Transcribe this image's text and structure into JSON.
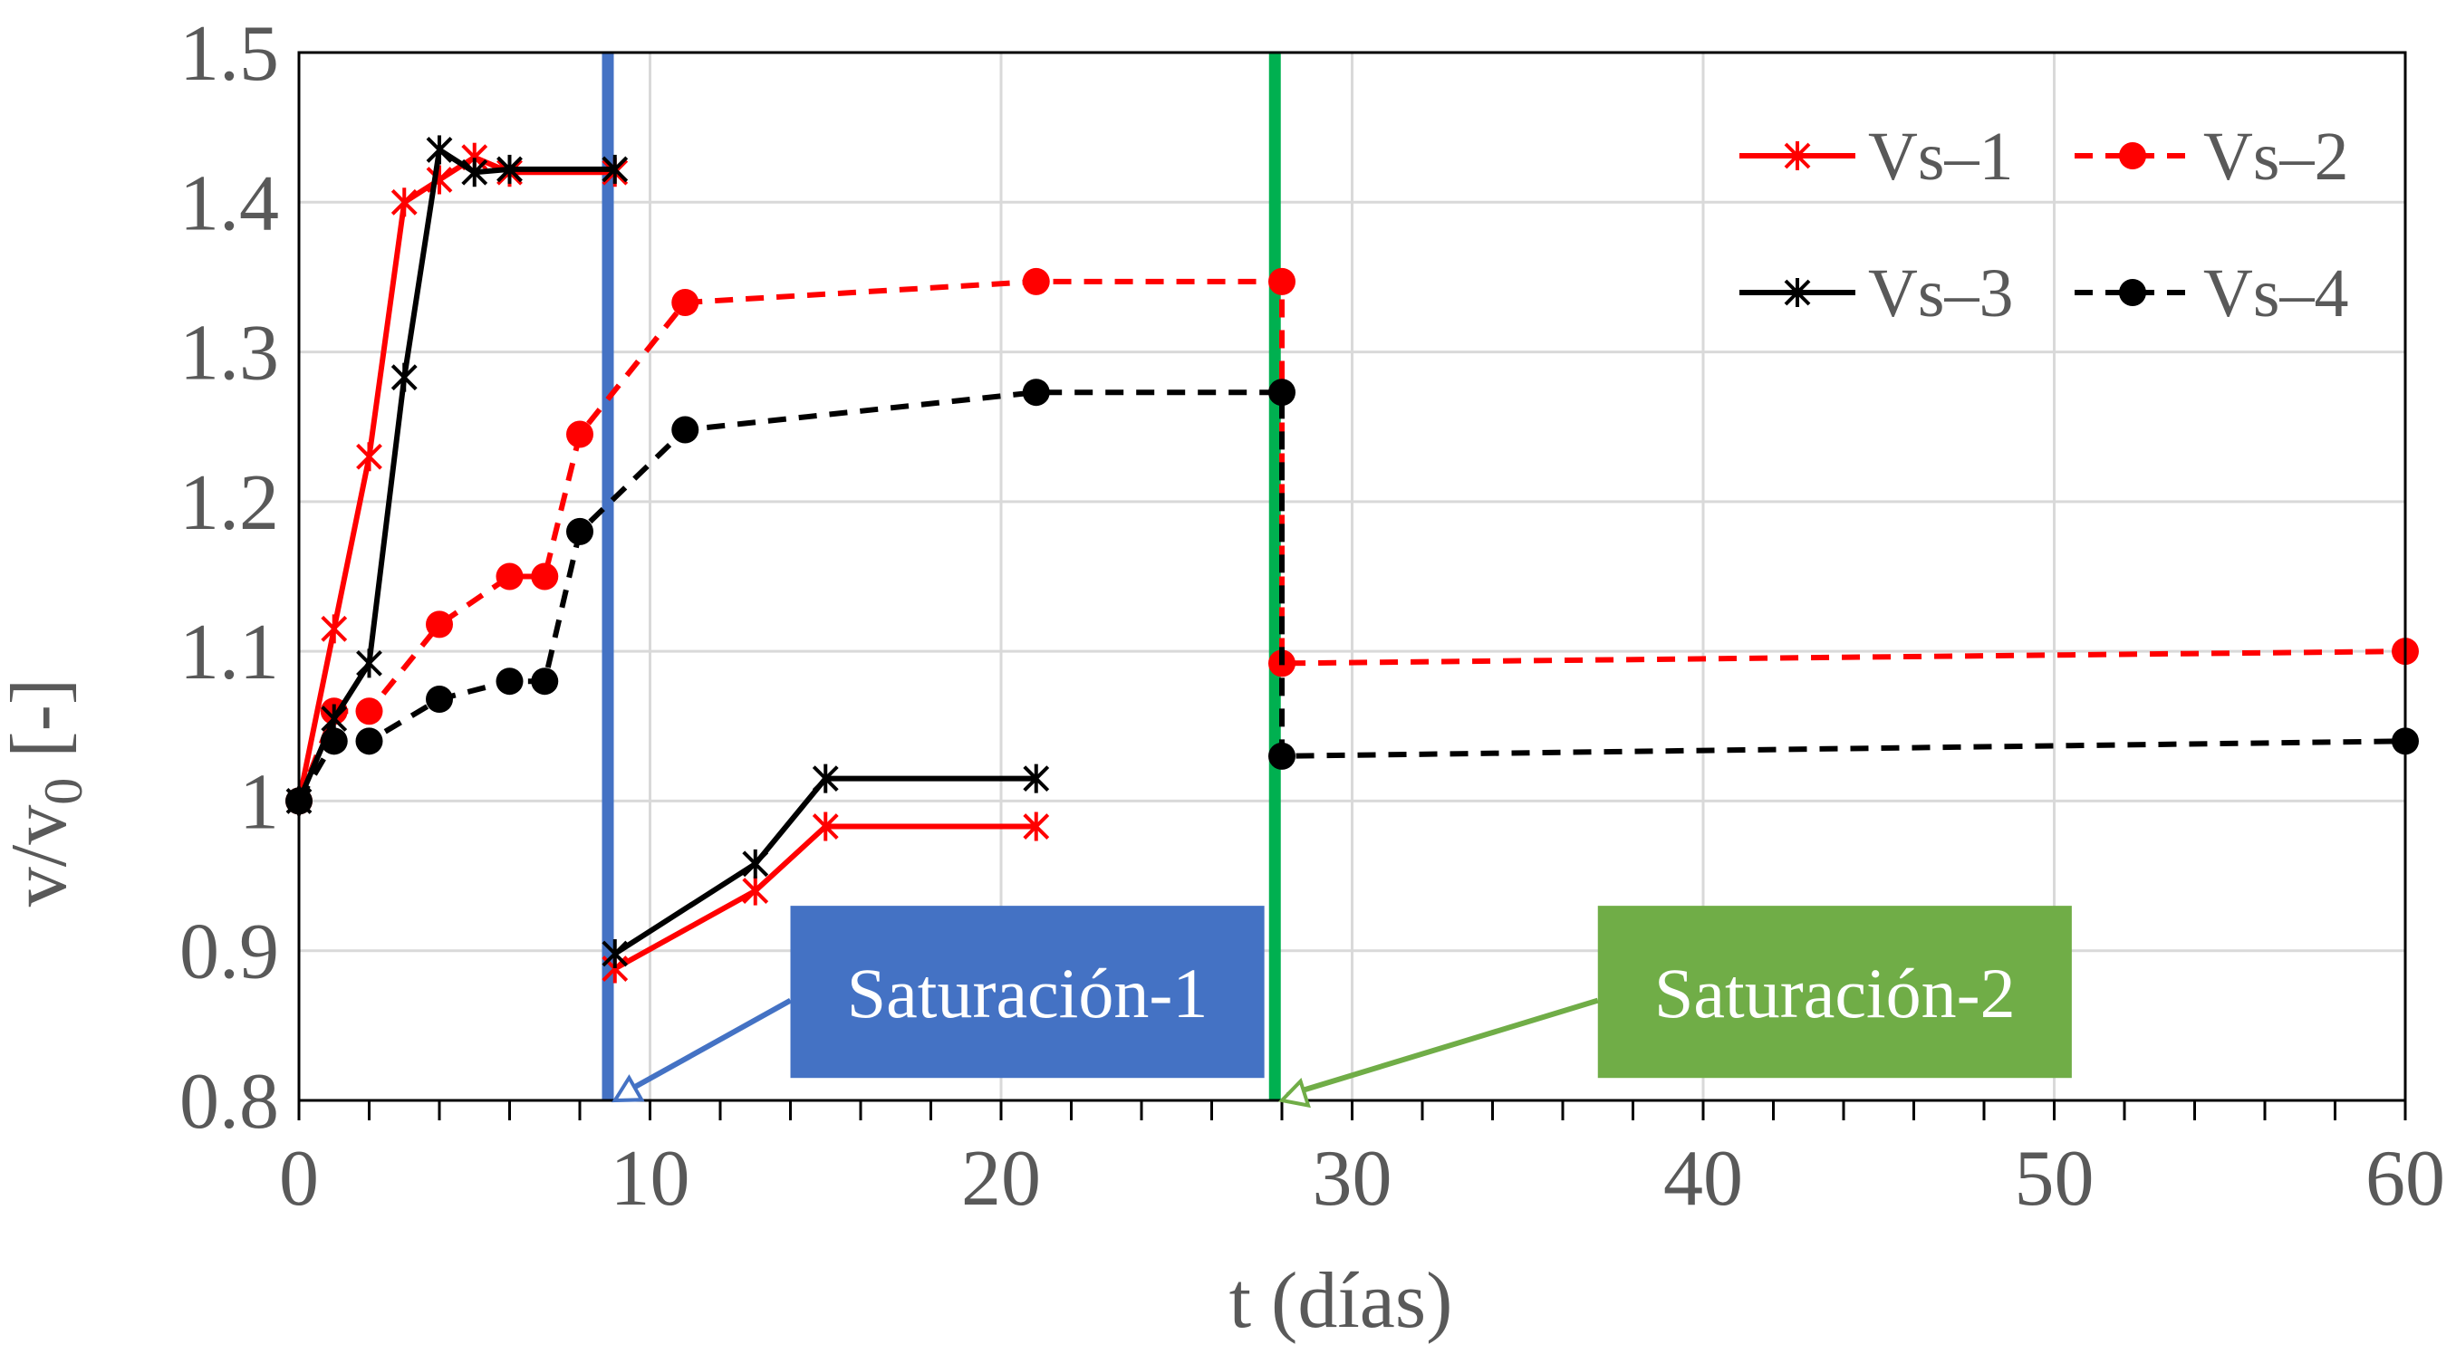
{
  "chart_data": {
    "type": "line",
    "title": "",
    "xlabel": "t (días)",
    "ylabel_main": "v/v",
    "ylabel_sub": "0",
    "ylabel_suffix": " [-]",
    "xlim": [
      0,
      60
    ],
    "ylim": [
      0.8,
      1.5
    ],
    "x_ticks": [
      0,
      10,
      20,
      30,
      40,
      50,
      60
    ],
    "y_ticks": [
      0.8,
      0.9,
      1.0,
      1.1,
      1.2,
      1.3,
      1.4,
      1.5
    ],
    "y_tick_labels": [
      "0.8",
      "0.9",
      "1",
      "1.1",
      "1.2",
      "1.3",
      "1.4",
      "1.5"
    ],
    "x_tick_labels": [
      "0",
      "10",
      "20",
      "30",
      "40",
      "50",
      "60"
    ],
    "x_minor_step": 2,
    "grid": true,
    "legend_position": "top-right",
    "series": [
      {
        "name": "Vs–1",
        "color": "#ff0000",
        "style": "solid",
        "marker": "asterisk",
        "segments": [
          [
            [
              0,
              1.0
            ],
            [
              1,
              1.115
            ],
            [
              2,
              1.23
            ],
            [
              3,
              1.4
            ],
            [
              4,
              1.415
            ],
            [
              5,
              1.43
            ],
            [
              6,
              1.42
            ],
            [
              9,
              1.42
            ]
          ],
          [
            [
              9,
              0.888
            ],
            [
              13,
              0.94
            ],
            [
              15,
              0.983
            ],
            [
              21,
              0.983
            ]
          ]
        ]
      },
      {
        "name": "Vs–2",
        "color": "#ff0000",
        "style": "dashed",
        "marker": "dot",
        "segments": [
          [
            [
              0,
              1.0
            ],
            [
              1,
              1.06
            ],
            [
              2,
              1.06
            ],
            [
              4,
              1.118
            ],
            [
              6,
              1.15
            ],
            [
              7,
              1.15
            ],
            [
              8,
              1.245
            ],
            [
              11,
              1.333
            ],
            [
              21,
              1.347
            ],
            [
              28,
              1.347
            ],
            [
              28,
              1.092
            ],
            [
              60,
              1.1
            ]
          ]
        ]
      },
      {
        "name": "Vs–3",
        "color": "#000000",
        "style": "solid",
        "marker": "asterisk",
        "segments": [
          [
            [
              0,
              1.0
            ],
            [
              1,
              1.055
            ],
            [
              2,
              1.092
            ],
            [
              3,
              1.283
            ],
            [
              4,
              1.435
            ],
            [
              5,
              1.42
            ],
            [
              6,
              1.422
            ],
            [
              9,
              1.422
            ]
          ],
          [
            [
              9,
              0.898
            ],
            [
              13,
              0.958
            ],
            [
              15,
              1.015
            ],
            [
              21,
              1.015
            ]
          ]
        ]
      },
      {
        "name": "Vs–4",
        "color": "#000000",
        "style": "dashed",
        "marker": "dot",
        "segments": [
          [
            [
              0,
              1.0
            ],
            [
              1,
              1.04
            ],
            [
              2,
              1.04
            ],
            [
              4,
              1.068
            ],
            [
              6,
              1.08
            ],
            [
              7,
              1.08
            ],
            [
              8,
              1.18
            ],
            [
              11,
              1.248
            ],
            [
              21,
              1.273
            ],
            [
              28,
              1.273
            ],
            [
              28,
              1.03
            ],
            [
              60,
              1.04
            ]
          ]
        ]
      }
    ],
    "markers": {
      "Vs–1": [
        [
          1,
          1.115
        ],
        [
          2,
          1.23
        ],
        [
          3,
          1.4
        ],
        [
          4,
          1.415
        ],
        [
          5,
          1.43
        ],
        [
          6,
          1.42
        ],
        [
          9,
          1.42
        ],
        [
          9,
          0.888
        ],
        [
          13,
          0.94
        ],
        [
          15,
          0.983
        ],
        [
          21,
          0.983
        ]
      ],
      "Vs–2": [
        [
          0,
          1.0
        ],
        [
          1,
          1.06
        ],
        [
          2,
          1.06
        ],
        [
          4,
          1.118
        ],
        [
          6,
          1.15
        ],
        [
          7,
          1.15
        ],
        [
          8,
          1.245
        ],
        [
          11,
          1.333
        ],
        [
          21,
          1.347
        ],
        [
          28,
          1.347
        ],
        [
          28,
          1.092
        ],
        [
          60,
          1.1
        ]
      ],
      "Vs–3": [
        [
          0,
          1.0
        ],
        [
          1,
          1.055
        ],
        [
          2,
          1.092
        ],
        [
          3,
          1.283
        ],
        [
          4,
          1.435
        ],
        [
          5,
          1.42
        ],
        [
          6,
          1.422
        ],
        [
          9,
          1.422
        ],
        [
          9,
          0.898
        ],
        [
          13,
          0.958
        ],
        [
          15,
          1.015
        ],
        [
          21,
          1.015
        ]
      ],
      "Vs–4": [
        [
          0,
          1.0
        ],
        [
          1,
          1.04
        ],
        [
          2,
          1.04
        ],
        [
          4,
          1.068
        ],
        [
          6,
          1.08
        ],
        [
          7,
          1.08
        ],
        [
          8,
          1.18
        ],
        [
          11,
          1.248
        ],
        [
          21,
          1.273
        ],
        [
          28,
          1.273
        ],
        [
          28,
          1.03
        ],
        [
          60,
          1.04
        ]
      ]
    },
    "vertical_lines": [
      {
        "name": "saturation-1",
        "x": 8.8,
        "color": "#4472c4"
      },
      {
        "name": "saturation-2",
        "x": 27.8,
        "color": "#00b050"
      }
    ],
    "annotations": [
      {
        "name": "saturation-1-callout",
        "text": "Saturación-1",
        "box_color": "#4472c4",
        "arrow_color": "#4472c4",
        "box_x_range": [
          14,
          27.5
        ],
        "box_y_range": [
          0.815,
          0.93
        ],
        "arrow_tip": [
          9,
          0.8
        ]
      },
      {
        "name": "saturation-2-callout",
        "text": "Saturación-2",
        "box_color": "#70ad47",
        "arrow_color": "#70ad47",
        "box_x_range": [
          37,
          50.5
        ],
        "box_y_range": [
          0.815,
          0.93
        ],
        "arrow_tip": [
          28,
          0.8
        ]
      }
    ]
  }
}
